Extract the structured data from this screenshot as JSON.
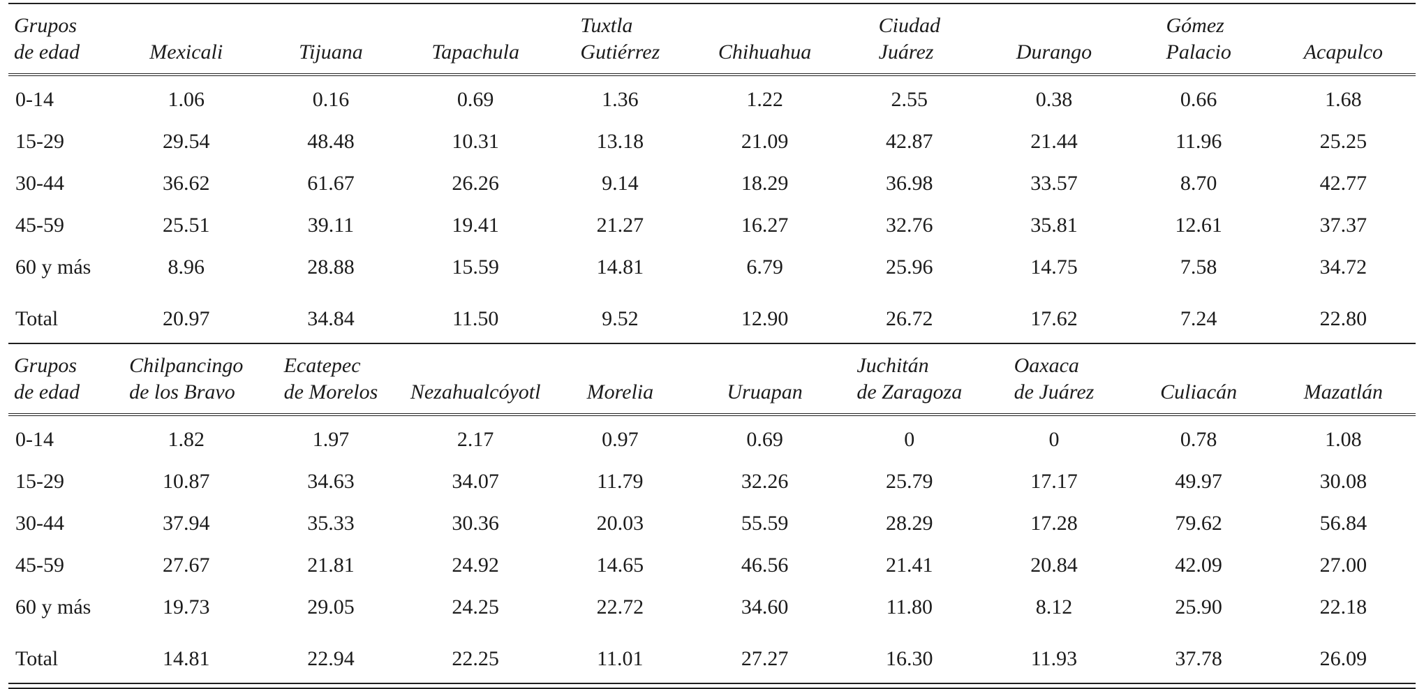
{
  "page": {
    "background": "#ffffff",
    "text_color": "#1b1b1b",
    "rule_color": "#1f1f1f"
  },
  "tables": [
    {
      "name": "age-groups-by-city-table-1",
      "header": [
        [
          "Grupos",
          "de edad"
        ],
        [
          "Mexicali"
        ],
        [
          "Tijuana"
        ],
        [
          "Tapachula"
        ],
        [
          "Tuxtla",
          "Gutiérrez"
        ],
        [
          "Chihuahua"
        ],
        [
          "Ciudad",
          "Juárez"
        ],
        [
          "Durango"
        ],
        [
          "Gómez",
          "Palacio"
        ],
        [
          "Acapulco"
        ]
      ],
      "rows": [
        {
          "label": "0-14",
          "values": [
            "1.06",
            "0.16",
            "0.69",
            "1.36",
            "1.22",
            "2.55",
            "0.38",
            "0.66",
            "1.68"
          ]
        },
        {
          "label": "15-29",
          "values": [
            "29.54",
            "48.48",
            "10.31",
            "13.18",
            "21.09",
            "42.87",
            "21.44",
            "11.96",
            "25.25"
          ]
        },
        {
          "label": "30-44",
          "values": [
            "36.62",
            "61.67",
            "26.26",
            "9.14",
            "18.29",
            "36.98",
            "33.57",
            "8.70",
            "42.77"
          ]
        },
        {
          "label": "45-59",
          "values": [
            "25.51",
            "39.11",
            "19.41",
            "21.27",
            "16.27",
            "32.76",
            "35.81",
            "12.61",
            "37.37"
          ]
        },
        {
          "label": "60 y más",
          "values": [
            "8.96",
            "28.88",
            "15.59",
            "14.81",
            "6.79",
            "25.96",
            "14.75",
            "7.58",
            "34.72"
          ]
        },
        {
          "label": "Total",
          "values": [
            "20.97",
            "34.84",
            "11.50",
            "9.52",
            "12.90",
            "26.72",
            "17.62",
            "7.24",
            "22.80"
          ],
          "is_total": true
        }
      ]
    },
    {
      "name": "age-groups-by-city-table-2",
      "header": [
        [
          "Grupos",
          "de edad"
        ],
        [
          "Chilpancingo",
          "de los Bravo"
        ],
        [
          "Ecatepec",
          "de Morelos"
        ],
        [
          "Nezahualcóyotl"
        ],
        [
          "Morelia"
        ],
        [
          "Uruapan"
        ],
        [
          "Juchitán",
          "de Zaragoza"
        ],
        [
          "Oaxaca",
          "de Juárez"
        ],
        [
          "Culiacán"
        ],
        [
          "Mazatlán"
        ]
      ],
      "rows": [
        {
          "label": "0-14",
          "values": [
            "1.82",
            "1.97",
            "2.17",
            "0.97",
            "0.69",
            "0",
            "0",
            "0.78",
            "1.08"
          ]
        },
        {
          "label": "15-29",
          "values": [
            "10.87",
            "34.63",
            "34.07",
            "11.79",
            "32.26",
            "25.79",
            "17.17",
            "49.97",
            "30.08"
          ]
        },
        {
          "label": "30-44",
          "values": [
            "37.94",
            "35.33",
            "30.36",
            "20.03",
            "55.59",
            "28.29",
            "17.28",
            "79.62",
            "56.84"
          ]
        },
        {
          "label": "45-59",
          "values": [
            "27.67",
            "21.81",
            "24.92",
            "14.65",
            "46.56",
            "21.41",
            "20.84",
            "42.09",
            "27.00"
          ]
        },
        {
          "label": "60 y más",
          "values": [
            "19.73",
            "29.05",
            "24.25",
            "22.72",
            "34.60",
            "11.80",
            "8.12",
            "25.90",
            "22.18"
          ]
        },
        {
          "label": "Total",
          "values": [
            "14.81",
            "22.94",
            "22.25",
            "11.01",
            "27.27",
            "16.30",
            "11.93",
            "37.78",
            "26.09"
          ],
          "is_total": true
        }
      ]
    }
  ]
}
